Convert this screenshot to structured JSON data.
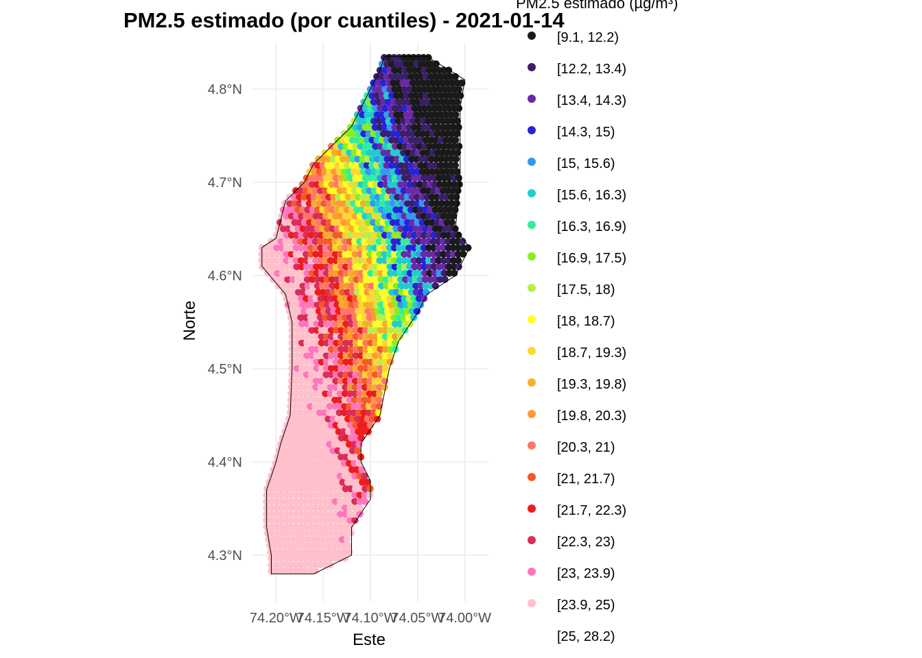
{
  "chart_data": {
    "type": "scatter",
    "title": "PM2.5 estimado (por cuantiles) - 2021-01-14",
    "xlabel": "Este",
    "ylabel": "Norte",
    "xlim": [
      -74.225,
      -73.975
    ],
    "ylim": [
      4.25,
      4.85
    ],
    "x_ticks": [
      {
        "value": -74.2,
        "label": "74.20°W"
      },
      {
        "value": -74.15,
        "label": "74.15°W"
      },
      {
        "value": -74.1,
        "label": "74.10°W"
      },
      {
        "value": -74.05,
        "label": "74.05°W"
      },
      {
        "value": -74.0,
        "label": "74.00°W"
      }
    ],
    "y_ticks": [
      {
        "value": 4.3,
        "label": "4.3°N"
      },
      {
        "value": 4.4,
        "label": "4.4°N"
      },
      {
        "value": 4.5,
        "label": "4.5°N"
      },
      {
        "value": 4.6,
        "label": "4.6°N"
      },
      {
        "value": 4.7,
        "label": "4.7°N"
      },
      {
        "value": 4.8,
        "label": "4.8°N"
      }
    ],
    "grid": true,
    "legend": {
      "title": "PM2.5 estimado (µg/m³)",
      "position": "right",
      "entries": [
        {
          "label": "[9.1, 12.2)",
          "color": "#1a1a1a"
        },
        {
          "label": "[12.2, 13.4)",
          "color": "#3b1f6a"
        },
        {
          "label": "[13.4, 14.3)",
          "color": "#6a2aa6"
        },
        {
          "label": "[14.3, 15)",
          "color": "#2424d8"
        },
        {
          "label": "[15, 15.6)",
          "color": "#3399ee"
        },
        {
          "label": "[15.6, 16.3)",
          "color": "#22cccc"
        },
        {
          "label": "[16.3, 16.9)",
          "color": "#33ee99"
        },
        {
          "label": "[16.9, 17.5)",
          "color": "#88ee22"
        },
        {
          "label": "[17.5, 18)",
          "color": "#bbee44"
        },
        {
          "label": "[18, 18.7)",
          "color": "#ffff22"
        },
        {
          "label": "[18.7, 19.3)",
          "color": "#ffd633"
        },
        {
          "label": "[19.3, 19.8)",
          "color": "#f5b02a"
        },
        {
          "label": "[19.8, 20.3)",
          "color": "#ff9933"
        },
        {
          "label": "[20.3, 21)",
          "color": "#ff7766"
        },
        {
          "label": "[21, 21.7)",
          "color": "#f55a2a"
        },
        {
          "label": "[21.7, 22.3)",
          "color": "#ee1c1c"
        },
        {
          "label": "[22.3, 23)",
          "color": "#d92d5a"
        },
        {
          "label": "[23, 23.9)",
          "color": "#ff77bb"
        },
        {
          "label": "[23.9, 25)",
          "color": "#ffc0cb"
        },
        {
          "label": "[25, 28.2)",
          "color": "#ffffff"
        }
      ]
    }
  }
}
